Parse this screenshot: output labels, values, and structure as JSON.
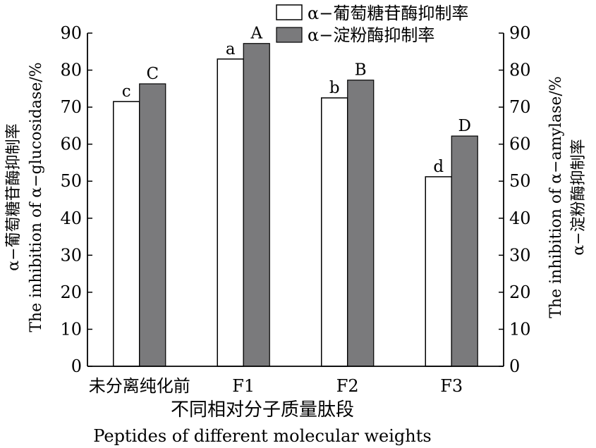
{
  "chart_data": {
    "type": "bar",
    "categories": [
      "未分离纯化前",
      "F1",
      "F2",
      "F3"
    ],
    "series": [
      {
        "name": "α−葡萄糖苷酶抑制率",
        "values": [
          71.5,
          83,
          72.5,
          51.2
        ],
        "color": "#ffffff",
        "labels": [
          "c",
          "a",
          "b",
          "d"
        ]
      },
      {
        "name": "α−淀粉酶抑制率",
        "values": [
          76.3,
          87.2,
          77.3,
          62.2
        ],
        "color": "#7a7a7c",
        "labels": [
          "C",
          "A",
          "B",
          "D"
        ]
      }
    ],
    "ylim": [
      0,
      90
    ],
    "yticks": [
      "0",
      "10",
      "20",
      "30",
      "40",
      "50",
      "60",
      "70",
      "80",
      "90"
    ],
    "ylabel_left": [
      "α−葡萄糖苷酶抑制率",
      "The inhibition of  α−glucosidase/%"
    ],
    "ylabel_right": [
      "The inhibition of  α−amylase/%",
      "α−淀粉酶抑制率"
    ],
    "xlabel": [
      "不同相对分子质量肽段",
      "Peptides of different molecular weights"
    ],
    "legend_position": "top-right",
    "grid": false
  }
}
